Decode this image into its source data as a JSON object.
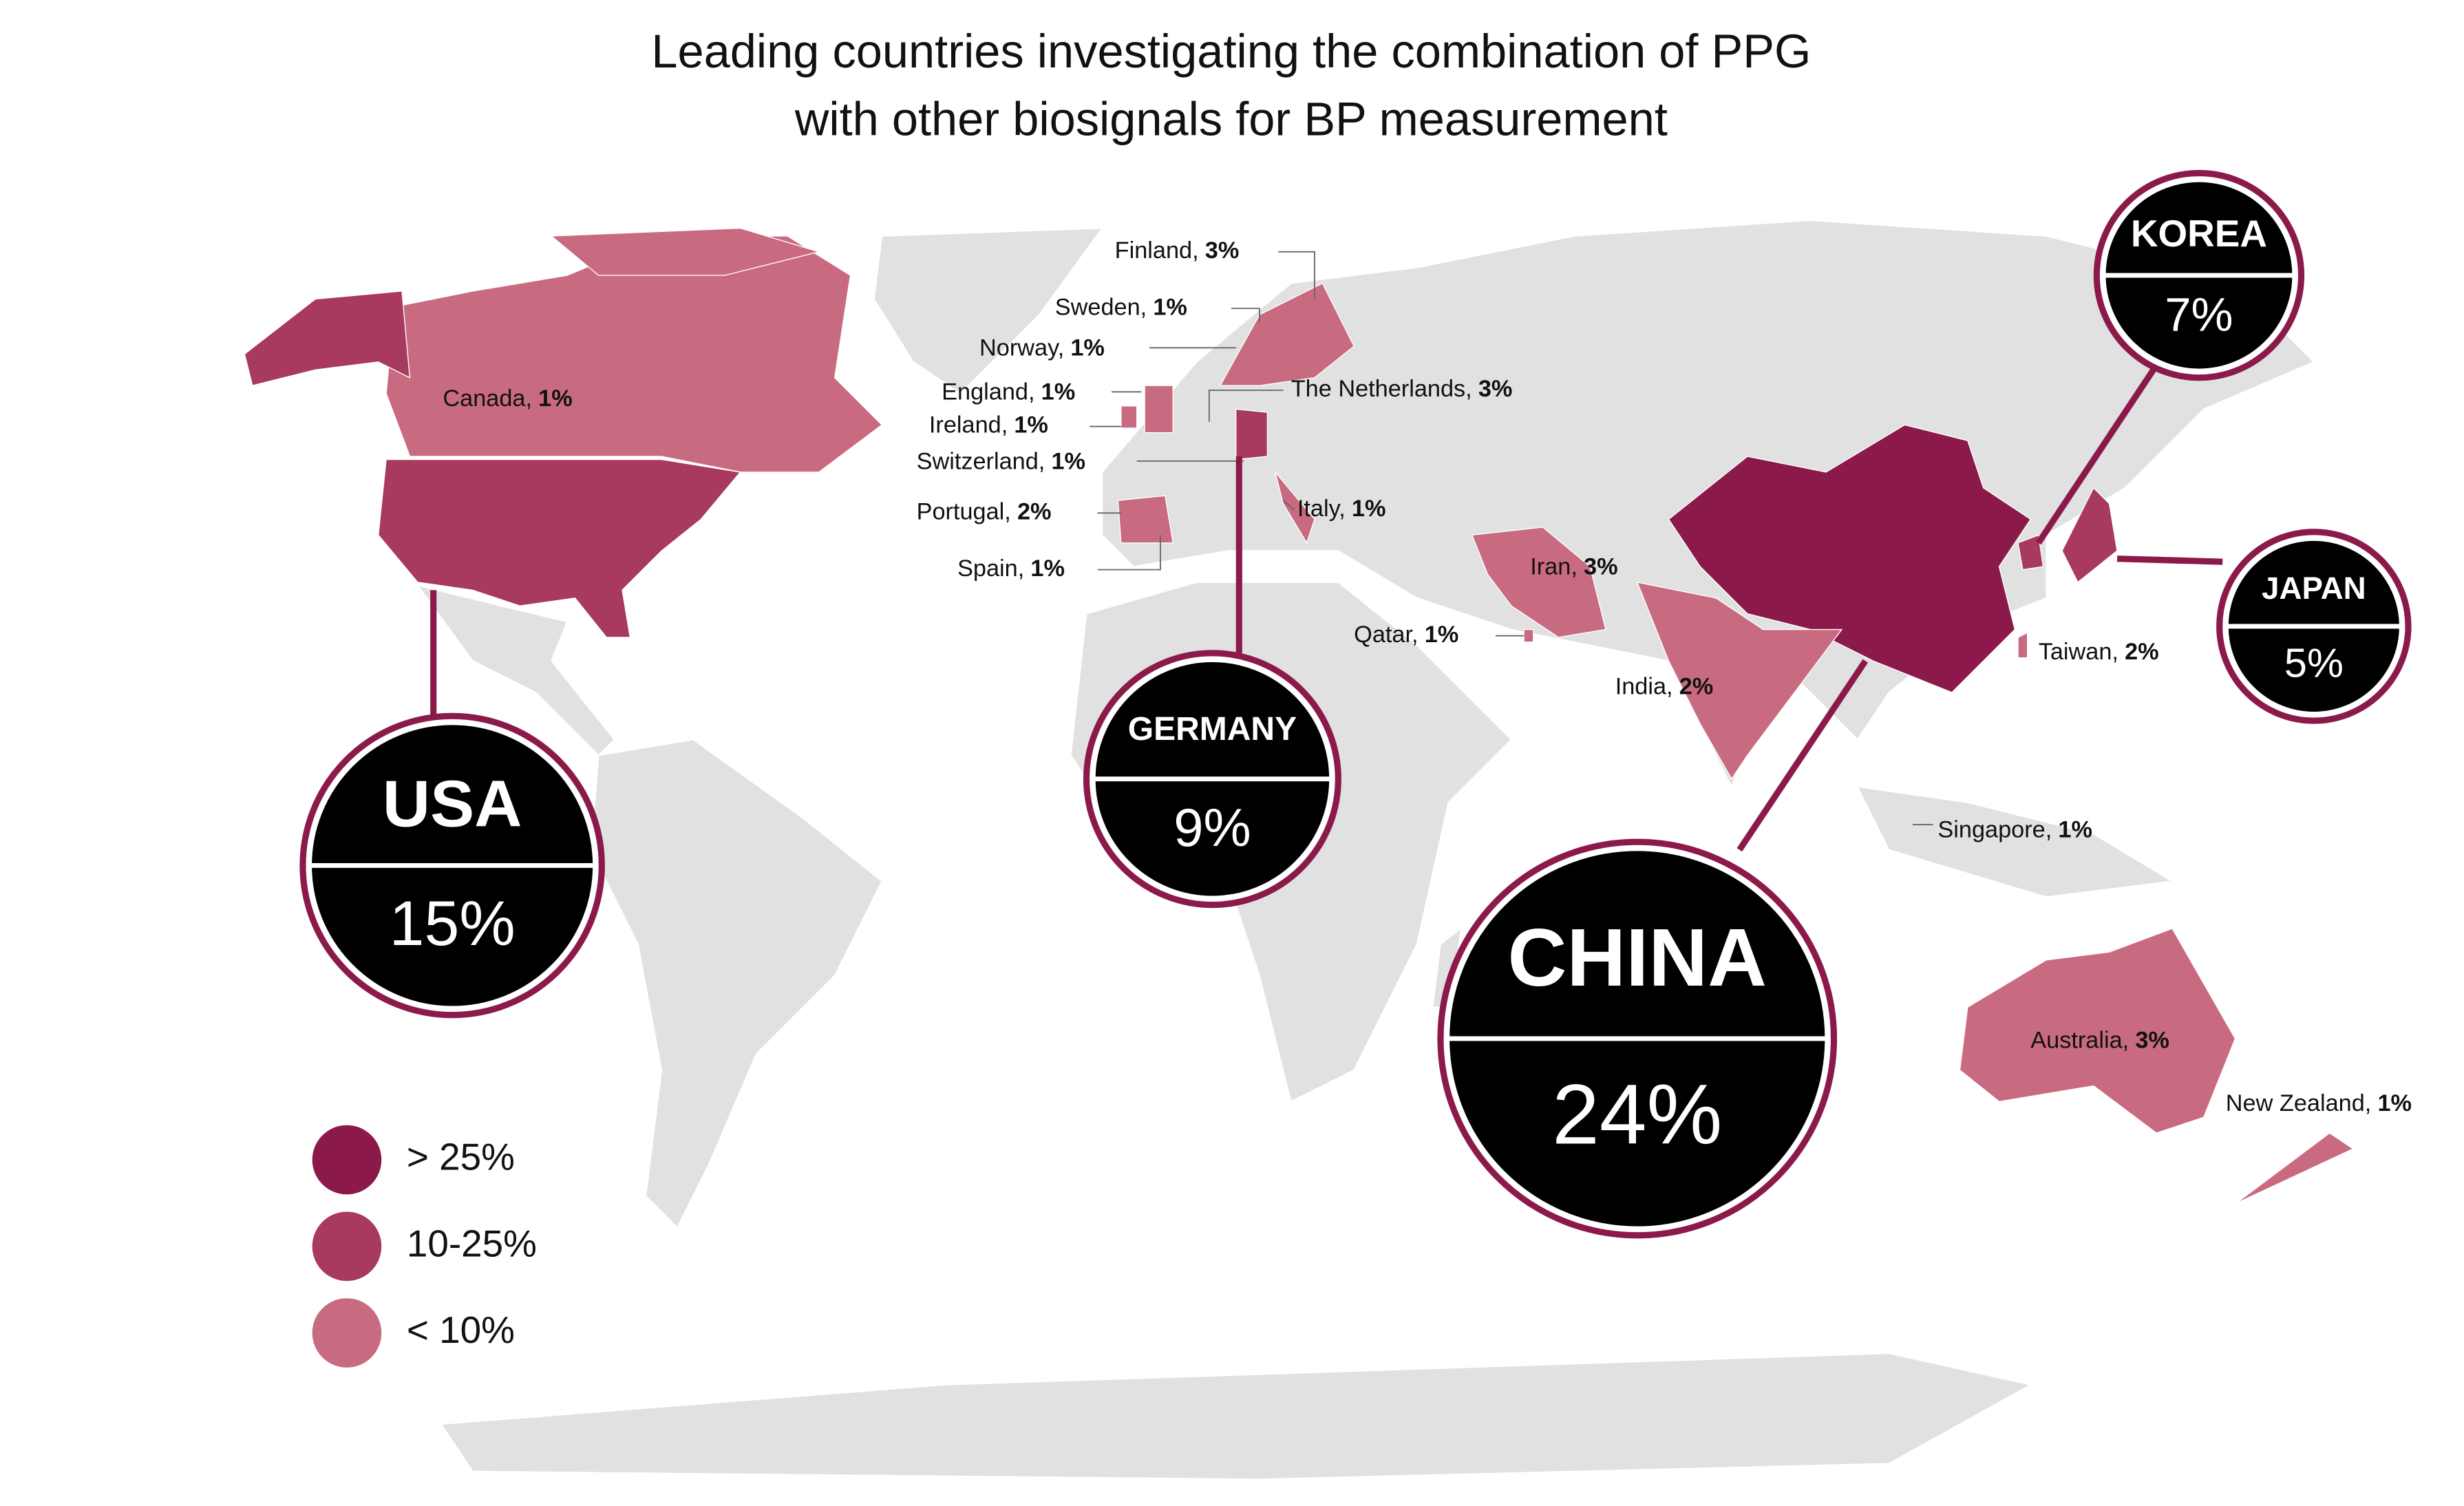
{
  "title": [
    "Leading countries investigating the combination of PPG",
    "with other biosignals for BP measurement"
  ],
  "callouts": [
    {
      "name": "USA",
      "share": "15%"
    },
    {
      "name": "GERMANY",
      "share": "9%"
    },
    {
      "name": "CHINA",
      "share": "24%"
    },
    {
      "name": "KOREA",
      "share": "7%"
    },
    {
      "name": "JAPAN",
      "share": "5%"
    }
  ],
  "labels": [
    {
      "name": "Canada,",
      "share": "1%"
    },
    {
      "name": "Finland,",
      "share": "3%"
    },
    {
      "name": "Sweden,",
      "share": "1%"
    },
    {
      "name": "Norway,",
      "share": "1%"
    },
    {
      "name": "England,",
      "share": "1%"
    },
    {
      "name": "Ireland,",
      "share": "1%"
    },
    {
      "name": "Switzerland,",
      "share": "1%"
    },
    {
      "name": "The Netherlands,",
      "share": "3%"
    },
    {
      "name": "Portugal,",
      "share": "2%"
    },
    {
      "name": "Italy,",
      "share": "1%"
    },
    {
      "name": "Spain,",
      "share": "1%"
    },
    {
      "name": "Iran,",
      "share": "3%"
    },
    {
      "name": "Qatar,",
      "share": "1%"
    },
    {
      "name": "India,",
      "share": "2%"
    },
    {
      "name": "Taiwan,",
      "share": "2%"
    },
    {
      "name": "Singapore,",
      "share": "1%"
    },
    {
      "name": "Australia,",
      "share": "3%"
    },
    {
      "name": "New Zealand,",
      "share": "1%"
    }
  ],
  "legend": [
    {
      "label": "> 25%",
      "color": "#8b1a4a"
    },
    {
      "label": "10-25%",
      "color": "#a8395f"
    },
    {
      "label": "< 10%",
      "color": "#c96b80"
    }
  ]
}
